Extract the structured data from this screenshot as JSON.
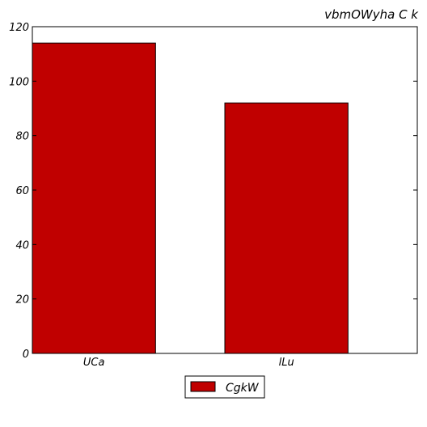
{
  "chart_data": {
    "type": "bar",
    "title": "vbmOWyha C k",
    "xlabel": "",
    "ylabel": "",
    "categories": [
      "UCa",
      "lLu"
    ],
    "series": [
      {
        "name": "CgkW",
        "values": [
          114,
          92
        ],
        "color": "#c00000"
      }
    ],
    "ylim": [
      0,
      120
    ],
    "yticks": [
      0,
      20,
      40,
      60,
      80,
      100,
      120
    ],
    "grid": false,
    "legend": {
      "placement": "bottom-center"
    }
  }
}
